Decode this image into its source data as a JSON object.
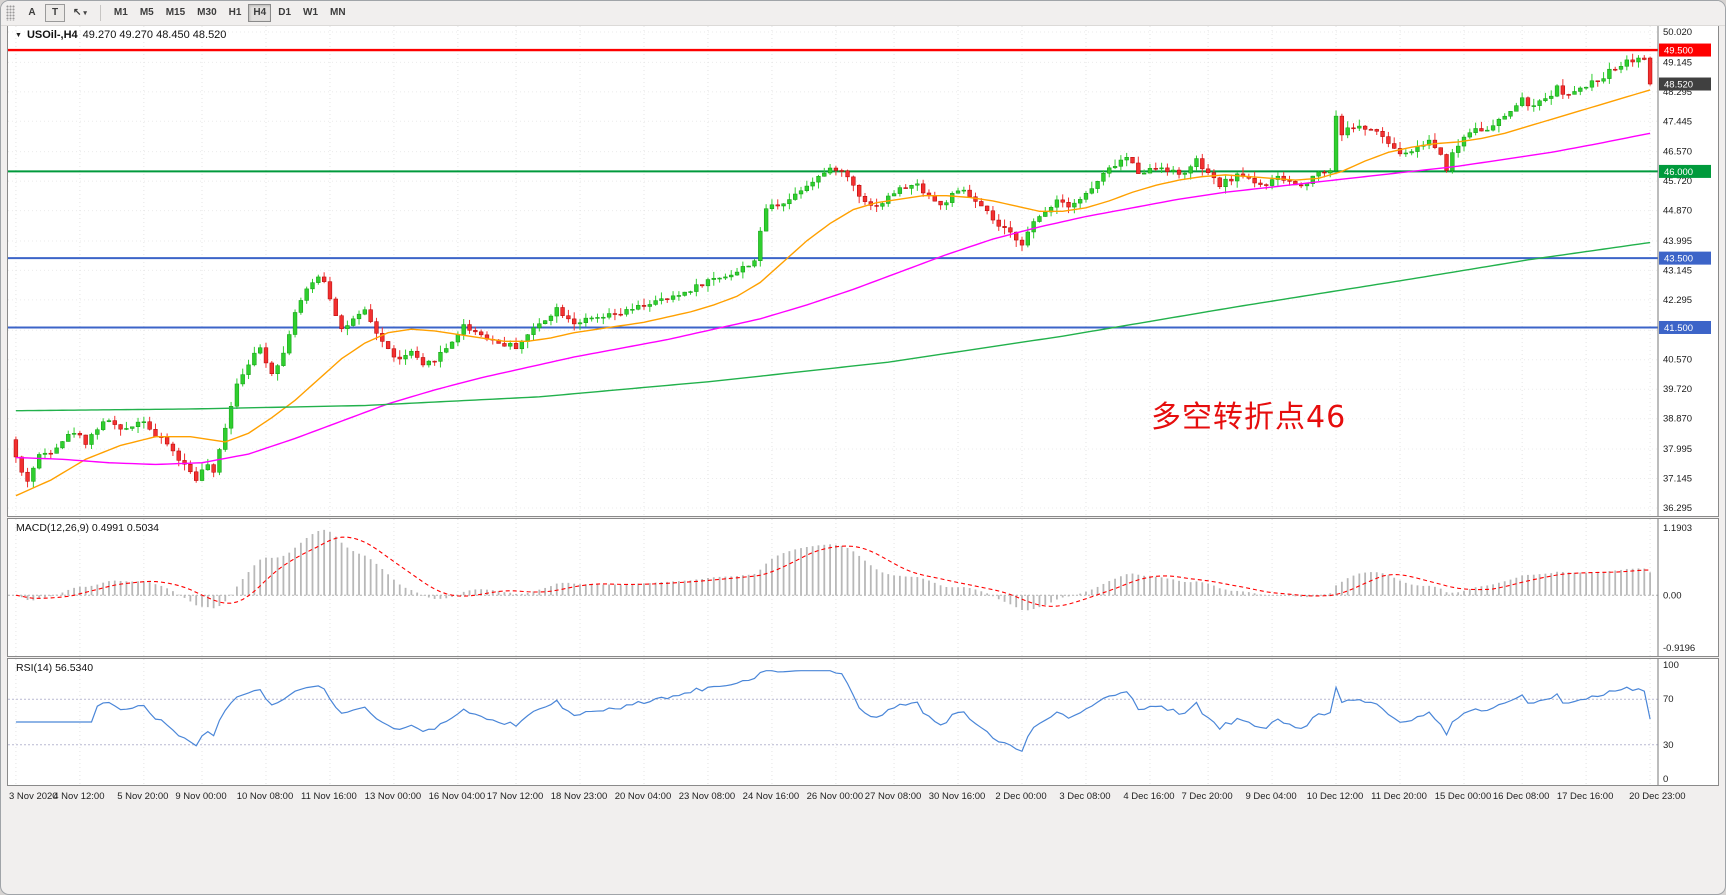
{
  "toolbar": {
    "buttons": [
      {
        "id": "font-tool",
        "label": "A"
      },
      {
        "id": "text-tool",
        "label": "T"
      }
    ],
    "arrow_tool_glyph": "↖",
    "dropdown_glyph": "▾",
    "timeframes": [
      "M1",
      "M5",
      "M15",
      "M30",
      "H1",
      "H4",
      "D1",
      "W1",
      "MN"
    ],
    "active_timeframe": "H4"
  },
  "chart": {
    "title_symbol": "USOil-,H4",
    "title_ohlc": "49.270 49.270 48.450 48.520",
    "dropdown_glyph": "▼",
    "annotation": "多空转折点46",
    "annotation_color": "#e60d0d",
    "price_max": 50.02,
    "price_min": 36.295,
    "y_ticks": [
      "50.020",
      "49.145",
      "48.295",
      "47.445",
      "46.570",
      "45.720",
      "44.870",
      "43.995",
      "43.145",
      "42.295",
      "41.420",
      "40.570",
      "39.720",
      "38.870",
      "37.995",
      "37.145",
      "36.295"
    ],
    "x_labels": [
      "3 Nov 2020",
      "4 Nov 12:00",
      "5 Nov 20:00",
      "9 Nov 00:00",
      "10 Nov 08:00",
      "11 Nov 16:00",
      "13 Nov 00:00",
      "16 Nov 04:00",
      "17 Nov 12:00",
      "18 Nov 23:00",
      "20 Nov 04:00",
      "23 Nov 08:00",
      "24 Nov 16:00",
      "26 Nov 00:00",
      "27 Nov 08:00",
      "30 Nov 16:00",
      "2 Dec 00:00",
      "3 Dec 08:00",
      "4 Dec 16:00",
      "7 Dec 20:00",
      "9 Dec 04:00",
      "10 Dec 12:00",
      "11 Dec 20:00",
      "15 Dec 00:00",
      "16 Dec 08:00",
      "17 Dec 16:00",
      "20 Dec 23:00"
    ],
    "levels": [
      {
        "price": 49.5,
        "label": "49.500",
        "color": "#fe0000",
        "width": 2.4
      },
      {
        "price": 46.0,
        "label": "46.000",
        "color": "#009a3c",
        "width": 2.0
      },
      {
        "price": 43.5,
        "label": "43.500",
        "color": "#3c64c8",
        "width": 2.0
      },
      {
        "price": 41.5,
        "label": "41.500",
        "color": "#3c64c8",
        "width": 2.0
      }
    ],
    "current_price": 48.52,
    "current_price_label": "48.520",
    "current_price_tag_color": "#404040"
  },
  "chart_data": {
    "type": "candlestick",
    "symbol": "USOil",
    "timeframe": "H4",
    "count": 282,
    "last_open": 49.27,
    "last_close": 48.52,
    "up_color": "#2fce2f",
    "down_color": "#f23030",
    "up_stroke": "#0e9c0e",
    "down_stroke": "#b30000",
    "close_anchors": [
      [
        0,
        37.75
      ],
      [
        1,
        37.3
      ],
      [
        2,
        37.1
      ],
      [
        4,
        37.8
      ],
      [
        6,
        37.95
      ],
      [
        8,
        38.25
      ],
      [
        10,
        38.5
      ],
      [
        12,
        38.2
      ],
      [
        14,
        38.6
      ],
      [
        16,
        38.85
      ],
      [
        18,
        38.5
      ],
      [
        20,
        38.7
      ],
      [
        22,
        38.85
      ],
      [
        24,
        38.35
      ],
      [
        26,
        38.15
      ],
      [
        28,
        37.7
      ],
      [
        30,
        37.35
      ],
      [
        31,
        37.15
      ],
      [
        33,
        37.55
      ],
      [
        34,
        37.25
      ],
      [
        36,
        38.65
      ],
      [
        38,
        39.9
      ],
      [
        40,
        40.5
      ],
      [
        42,
        40.9
      ],
      [
        44,
        40.2
      ],
      [
        46,
        40.75
      ],
      [
        48,
        41.95
      ],
      [
        50,
        42.55
      ],
      [
        52,
        43.0
      ],
      [
        53,
        42.85
      ],
      [
        55,
        41.9
      ],
      [
        56,
        41.45
      ],
      [
        58,
        41.7
      ],
      [
        60,
        41.95
      ],
      [
        62,
        41.35
      ],
      [
        64,
        40.85
      ],
      [
        66,
        40.55
      ],
      [
        68,
        40.8
      ],
      [
        70,
        40.35
      ],
      [
        72,
        40.6
      ],
      [
        74,
        40.9
      ],
      [
        77,
        41.55
      ],
      [
        80,
        41.3
      ],
      [
        83,
        41.05
      ],
      [
        86,
        40.95
      ],
      [
        89,
        41.45
      ],
      [
        93,
        42.05
      ],
      [
        96,
        41.65
      ],
      [
        100,
        41.75
      ],
      [
        104,
        41.9
      ],
      [
        109,
        42.2
      ],
      [
        113,
        42.35
      ],
      [
        116,
        42.6
      ],
      [
        119,
        42.85
      ],
      [
        121,
        42.95
      ],
      [
        124,
        43.1
      ],
      [
        127,
        43.45
      ],
      [
        129,
        44.95
      ],
      [
        131,
        45.05
      ],
      [
        133,
        45.2
      ],
      [
        135,
        45.5
      ],
      [
        137,
        45.75
      ],
      [
        139,
        45.95
      ],
      [
        141,
        46.1
      ],
      [
        143,
        45.85
      ],
      [
        145,
        45.35
      ],
      [
        147,
        45.0
      ],
      [
        149,
        45.1
      ],
      [
        151,
        45.4
      ],
      [
        153,
        45.55
      ],
      [
        155,
        45.6
      ],
      [
        157,
        45.3
      ],
      [
        159,
        45.0
      ],
      [
        161,
        45.3
      ],
      [
        163,
        45.45
      ],
      [
        165,
        45.1
      ],
      [
        167,
        44.8
      ],
      [
        169,
        44.4
      ],
      [
        171,
        44.2
      ],
      [
        173,
        43.95
      ],
      [
        175,
        44.5
      ],
      [
        177,
        44.85
      ],
      [
        179,
        45.2
      ],
      [
        181,
        45.05
      ],
      [
        183,
        45.2
      ],
      [
        185,
        45.5
      ],
      [
        187,
        45.9
      ],
      [
        189,
        46.2
      ],
      [
        191,
        46.4
      ],
      [
        193,
        46.0
      ],
      [
        195,
        46.05
      ],
      [
        197,
        46.15
      ],
      [
        200,
        45.9
      ],
      [
        202,
        46.1
      ],
      [
        203,
        46.3
      ],
      [
        205,
        45.9
      ],
      [
        207,
        45.6
      ],
      [
        209,
        45.8
      ],
      [
        211,
        45.9
      ],
      [
        213,
        45.7
      ],
      [
        215,
        45.6
      ],
      [
        217,
        45.8
      ],
      [
        219,
        45.7
      ],
      [
        221,
        45.55
      ],
      [
        223,
        45.9
      ],
      [
        225,
        46.0
      ],
      [
        226,
        46.05
      ],
      [
        227,
        47.6
      ],
      [
        228,
        47.1
      ],
      [
        230,
        47.3
      ],
      [
        233,
        47.2
      ],
      [
        235,
        47.0
      ],
      [
        237,
        46.6
      ],
      [
        239,
        46.5
      ],
      [
        241,
        46.7
      ],
      [
        243,
        46.9
      ],
      [
        245,
        46.5
      ],
      [
        246,
        46.1
      ],
      [
        247,
        46.5
      ],
      [
        249,
        47.0
      ],
      [
        251,
        47.3
      ],
      [
        253,
        47.15
      ],
      [
        255,
        47.45
      ],
      [
        257,
        47.75
      ],
      [
        259,
        48.05
      ],
      [
        261,
        47.85
      ],
      [
        263,
        48.1
      ],
      [
        265,
        48.4
      ],
      [
        267,
        48.2
      ],
      [
        269,
        48.35
      ],
      [
        271,
        48.55
      ],
      [
        273,
        48.75
      ],
      [
        275,
        49.0
      ],
      [
        277,
        49.2
      ],
      [
        279,
        49.25
      ],
      [
        280,
        49.27
      ],
      [
        281,
        48.52
      ]
    ],
    "ma_lines": [
      {
        "name": "ma-fast-orange",
        "color": "#ffa000",
        "anchors": [
          [
            0,
            36.65
          ],
          [
            6,
            37.1
          ],
          [
            12,
            37.7
          ],
          [
            18,
            38.1
          ],
          [
            24,
            38.35
          ],
          [
            30,
            38.35
          ],
          [
            36,
            38.2
          ],
          [
            40,
            38.45
          ],
          [
            44,
            38.9
          ],
          [
            48,
            39.4
          ],
          [
            52,
            40.0
          ],
          [
            56,
            40.6
          ],
          [
            60,
            41.05
          ],
          [
            64,
            41.35
          ],
          [
            68,
            41.45
          ],
          [
            72,
            41.4
          ],
          [
            76,
            41.3
          ],
          [
            80,
            41.2
          ],
          [
            84,
            41.1
          ],
          [
            88,
            41.1
          ],
          [
            92,
            41.2
          ],
          [
            96,
            41.35
          ],
          [
            100,
            41.45
          ],
          [
            104,
            41.55
          ],
          [
            108,
            41.65
          ],
          [
            112,
            41.8
          ],
          [
            116,
            41.95
          ],
          [
            120,
            42.15
          ],
          [
            124,
            42.4
          ],
          [
            128,
            42.8
          ],
          [
            132,
            43.4
          ],
          [
            136,
            44.0
          ],
          [
            140,
            44.5
          ],
          [
            144,
            44.9
          ],
          [
            148,
            45.1
          ],
          [
            152,
            45.2
          ],
          [
            156,
            45.3
          ],
          [
            160,
            45.3
          ],
          [
            164,
            45.25
          ],
          [
            168,
            45.15
          ],
          [
            172,
            45.0
          ],
          [
            176,
            44.85
          ],
          [
            180,
            44.85
          ],
          [
            184,
            44.95
          ],
          [
            188,
            45.15
          ],
          [
            192,
            45.4
          ],
          [
            196,
            45.6
          ],
          [
            200,
            45.75
          ],
          [
            204,
            45.85
          ],
          [
            208,
            45.9
          ],
          [
            212,
            45.85
          ],
          [
            216,
            45.8
          ],
          [
            220,
            45.75
          ],
          [
            224,
            45.8
          ],
          [
            228,
            46.0
          ],
          [
            232,
            46.3
          ],
          [
            236,
            46.55
          ],
          [
            240,
            46.7
          ],
          [
            244,
            46.8
          ],
          [
            248,
            46.85
          ],
          [
            252,
            46.95
          ],
          [
            256,
            47.1
          ],
          [
            260,
            47.3
          ],
          [
            264,
            47.5
          ],
          [
            268,
            47.7
          ],
          [
            272,
            47.9
          ],
          [
            276,
            48.1
          ],
          [
            281,
            48.35
          ]
        ]
      },
      {
        "name": "ma-mid-magenta",
        "color": "#ff00ff",
        "anchors": [
          [
            0,
            37.75
          ],
          [
            8,
            37.7
          ],
          [
            16,
            37.6
          ],
          [
            24,
            37.55
          ],
          [
            32,
            37.6
          ],
          [
            40,
            37.85
          ],
          [
            48,
            38.3
          ],
          [
            56,
            38.8
          ],
          [
            64,
            39.3
          ],
          [
            72,
            39.7
          ],
          [
            80,
            40.05
          ],
          [
            88,
            40.35
          ],
          [
            96,
            40.65
          ],
          [
            104,
            40.9
          ],
          [
            112,
            41.15
          ],
          [
            120,
            41.45
          ],
          [
            128,
            41.75
          ],
          [
            136,
            42.15
          ],
          [
            144,
            42.6
          ],
          [
            152,
            43.1
          ],
          [
            160,
            43.6
          ],
          [
            168,
            44.05
          ],
          [
            176,
            44.4
          ],
          [
            184,
            44.7
          ],
          [
            192,
            44.95
          ],
          [
            200,
            45.2
          ],
          [
            208,
            45.4
          ],
          [
            216,
            45.55
          ],
          [
            224,
            45.7
          ],
          [
            232,
            45.85
          ],
          [
            240,
            46.0
          ],
          [
            248,
            46.15
          ],
          [
            256,
            46.35
          ],
          [
            264,
            46.55
          ],
          [
            272,
            46.8
          ],
          [
            281,
            47.1
          ]
        ]
      },
      {
        "name": "ma-slow-green",
        "color": "#22b14c",
        "anchors": [
          [
            0,
            39.1
          ],
          [
            30,
            39.15
          ],
          [
            60,
            39.25
          ],
          [
            90,
            39.5
          ],
          [
            120,
            39.95
          ],
          [
            150,
            40.5
          ],
          [
            180,
            41.25
          ],
          [
            210,
            42.1
          ],
          [
            240,
            42.9
          ],
          [
            260,
            43.45
          ],
          [
            281,
            43.95
          ]
        ]
      }
    ]
  },
  "macd": {
    "label": "MACD(12,26,9) 0.4991 0.5034",
    "fast": 12,
    "slow": 26,
    "signal": 9,
    "value": 0.4991,
    "signal_value": 0.5034,
    "max": 1.1903,
    "min": -0.9196,
    "ticks": [
      "1.1903",
      "0.00",
      "-0.9196"
    ],
    "bar_color": "#b8b8b8",
    "signal_color": "#ff0000"
  },
  "rsi": {
    "label": "RSI(14) 56.5340",
    "period": 14,
    "value": 56.534,
    "upper": 70,
    "lower": 30,
    "ticks": [
      "100",
      "70",
      "30",
      "0"
    ],
    "line_color": "#4a86d8"
  }
}
